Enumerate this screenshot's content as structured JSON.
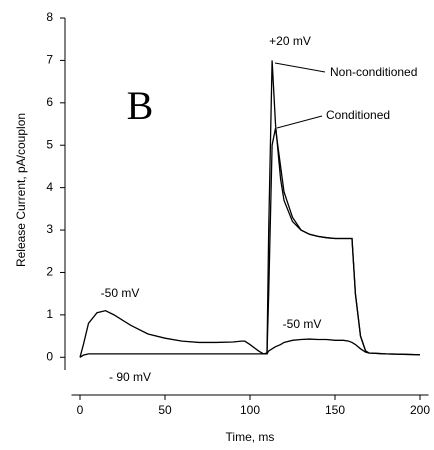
{
  "chart_data": {
    "type": "line",
    "title": "B",
    "x_label": "Time, ms",
    "y_label": "Release Current, pA/couplon",
    "annotations": [
      "+20 mV",
      "-50 mV",
      "-50 mV",
      "- 90 mV"
    ],
    "x": [
      0,
      2,
      5,
      10,
      15,
      20,
      30,
      40,
      50,
      60,
      70,
      80,
      90,
      95,
      97,
      100,
      105,
      108,
      110,
      111,
      113,
      115,
      118,
      120,
      125,
      130,
      135,
      140,
      145,
      150,
      155,
      158,
      160,
      162,
      165,
      168,
      170,
      180,
      190,
      200
    ],
    "series": [
      {
        "name": "Non-conditioned",
        "color": "#000000",
        "values": [
          0.0,
          0.3,
          0.8,
          1.05,
          1.1,
          1.0,
          0.75,
          0.55,
          0.45,
          0.38,
          0.35,
          0.35,
          0.36,
          0.38,
          0.38,
          0.3,
          0.15,
          0.08,
          0.1,
          3.0,
          7.0,
          5.5,
          4.2,
          3.7,
          3.2,
          3.0,
          2.9,
          2.85,
          2.82,
          2.8,
          2.8,
          2.8,
          2.8,
          1.5,
          0.5,
          0.15,
          0.1,
          0.08,
          0.07,
          0.06
        ]
      },
      {
        "name": "Conditioned",
        "color": "#000000",
        "values": [
          0.0,
          0.05,
          0.08,
          0.08,
          0.08,
          0.08,
          0.08,
          0.08,
          0.08,
          0.08,
          0.08,
          0.08,
          0.08,
          0.08,
          0.08,
          0.08,
          0.08,
          0.08,
          0.08,
          1.5,
          5.0,
          5.4,
          4.5,
          3.9,
          3.3,
          3.0,
          2.9,
          2.85,
          2.82,
          2.8,
          2.8,
          2.8,
          2.8,
          1.5,
          0.5,
          0.15,
          0.1,
          0.08,
          0.07,
          0.06
        ]
      },
      {
        "color": "#000000",
        "values": [
          null,
          null,
          null,
          null,
          null,
          null,
          null,
          null,
          null,
          null,
          null,
          null,
          null,
          null,
          null,
          null,
          null,
          0.08,
          0.08,
          0.15,
          0.2,
          0.25,
          0.3,
          0.35,
          0.4,
          0.42,
          0.43,
          0.42,
          0.42,
          0.4,
          0.4,
          0.38,
          0.35,
          0.3,
          0.2,
          0.12,
          0.1,
          null,
          null,
          null
        ]
      }
    ],
    "xlim": [
      -5,
      205
    ],
    "ylim": [
      -0.3,
      8
    ],
    "xticks": [
      0,
      50,
      100,
      150,
      200
    ],
    "yticks": [
      0,
      1,
      2,
      3,
      4,
      5,
      6,
      7,
      8
    ]
  }
}
